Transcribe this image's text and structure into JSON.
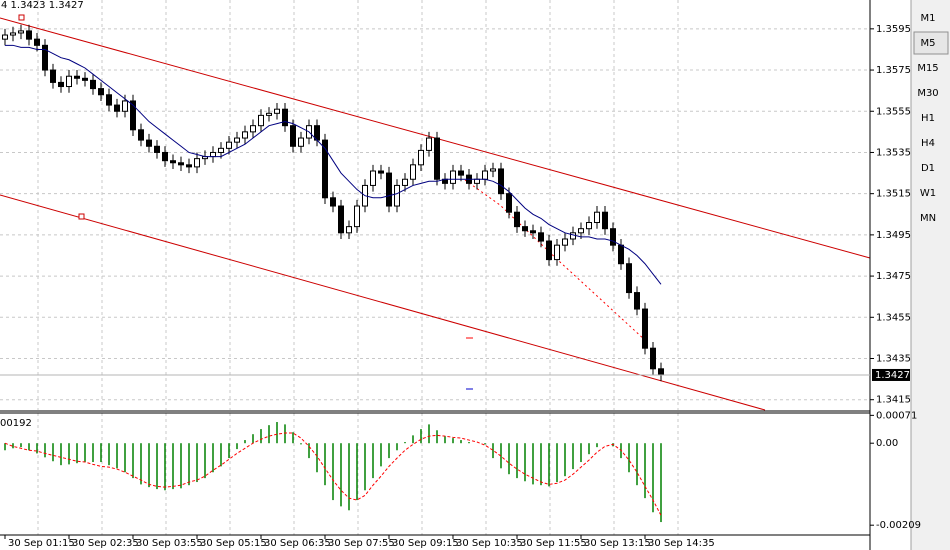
{
  "chart_data": {
    "type": "candlestick",
    "info_text": "4 1.3423 1.3427",
    "indicator_label": "00192",
    "categories": [
      "30 Sep 01:15",
      null,
      null,
      null,
      null,
      null,
      null,
      null,
      "30 Sep 02:35",
      null,
      null,
      null,
      null,
      null,
      null,
      null,
      "30 Sep 03:55",
      null,
      null,
      null,
      null,
      null,
      null,
      null,
      "30 Sep 05:15",
      null,
      null,
      null,
      null,
      null,
      null,
      null,
      "30 Sep 06:35",
      null,
      null,
      null,
      null,
      null,
      null,
      null,
      "30 Sep 07:55",
      null,
      null,
      null,
      null,
      null,
      null,
      null,
      "30 Sep 09:15",
      null,
      null,
      null,
      null,
      null,
      null,
      null,
      "30 Sep 10:35",
      null,
      null,
      null,
      null,
      null,
      null,
      null,
      "30 Sep 11:55",
      null,
      null,
      null,
      null,
      null,
      null,
      null,
      "30 Sep 13:15",
      null,
      null,
      null,
      null,
      null,
      null,
      null,
      "30 Sep 14:35",
      null,
      null
    ],
    "open": [
      1.359,
      1.3592,
      1.3593,
      1.3594,
      1.359,
      1.3587,
      1.3575,
      1.3569,
      1.3567,
      1.3572,
      1.3571,
      1.357,
      1.3566,
      1.3563,
      1.3558,
      1.3555,
      1.356,
      1.3546,
      1.3541,
      1.3538,
      1.3535,
      1.3531,
      1.353,
      1.3529,
      1.3528,
      1.3532,
      1.3533,
      1.3535,
      1.3537,
      1.354,
      1.3542,
      1.3545,
      1.3548,
      1.3553,
      1.3554,
      1.3556,
      1.3548,
      1.3538,
      1.3542,
      1.3548,
      1.3541,
      1.3513,
      1.3509,
      1.3496,
      1.3499,
      1.3509,
      1.3519,
      1.3526,
      1.3525,
      1.3509,
      1.3519,
      1.3522,
      1.3529,
      1.3536,
      1.3542,
      1.3522,
      1.352,
      1.3526,
      1.3524,
      1.352,
      1.3522,
      1.3526,
      1.3527,
      1.3515,
      1.3506,
      1.3499,
      1.3497,
      1.3496,
      1.3492,
      1.3483,
      1.349,
      1.3493,
      1.3496,
      1.3498,
      1.3501,
      1.3506,
      1.3498,
      1.349,
      1.3481,
      1.3467,
      1.3459,
      1.344,
      1.343
    ],
    "high": [
      1.3595,
      1.3596,
      1.3597,
      1.3597,
      1.3593,
      1.359,
      1.3578,
      1.3572,
      1.3575,
      1.3575,
      1.3574,
      1.3573,
      1.3569,
      1.3566,
      1.3561,
      1.3563,
      1.3563,
      1.3549,
      1.3544,
      1.3541,
      1.3538,
      1.3534,
      1.3533,
      1.3532,
      1.3535,
      1.3536,
      1.3538,
      1.354,
      1.3543,
      1.3545,
      1.3548,
      1.3551,
      1.3556,
      1.3557,
      1.3559,
      1.3559,
      1.3551,
      1.3545,
      1.3551,
      1.3551,
      1.3544,
      1.3516,
      1.3512,
      1.3502,
      1.3512,
      1.3522,
      1.3529,
      1.3529,
      1.3528,
      1.3522,
      1.3525,
      1.3532,
      1.3539,
      1.3545,
      1.3545,
      1.3525,
      1.3529,
      1.3529,
      1.3527,
      1.3525,
      1.3529,
      1.353,
      1.353,
      1.3518,
      1.3509,
      1.3502,
      1.35,
      1.3499,
      1.3495,
      1.3493,
      1.3496,
      1.3499,
      1.3501,
      1.3504,
      1.3509,
      1.3509,
      1.3501,
      1.3493,
      1.3484,
      1.347,
      1.3462,
      1.3443,
      1.3433
    ],
    "low": [
      1.3587,
      1.3589,
      1.359,
      1.3587,
      1.3584,
      1.3572,
      1.3566,
      1.3564,
      1.3564,
      1.3568,
      1.3567,
      1.3563,
      1.356,
      1.3555,
      1.3552,
      1.3552,
      1.3543,
      1.3538,
      1.3535,
      1.3532,
      1.3528,
      1.3527,
      1.3526,
      1.3525,
      1.3525,
      1.3529,
      1.353,
      1.3532,
      1.3534,
      1.3537,
      1.3539,
      1.3542,
      1.3545,
      1.355,
      1.3551,
      1.3545,
      1.3535,
      1.3535,
      1.3539,
      1.3538,
      1.351,
      1.3506,
      1.3493,
      1.3493,
      1.3496,
      1.3506,
      1.3516,
      1.3522,
      1.3506,
      1.3506,
      1.3516,
      1.3519,
      1.3526,
      1.3533,
      1.3519,
      1.3517,
      1.3517,
      1.3521,
      1.3517,
      1.3517,
      1.3519,
      1.3523,
      1.3512,
      1.3503,
      1.3496,
      1.3494,
      1.3493,
      1.3489,
      1.348,
      1.348,
      1.3487,
      1.349,
      1.3493,
      1.3495,
      1.3498,
      1.3495,
      1.3487,
      1.3478,
      1.3464,
      1.3456,
      1.3437,
      1.3427,
      1.3424
    ],
    "close": [
      1.3592,
      1.3593,
      1.3594,
      1.359,
      1.3587,
      1.3575,
      1.3569,
      1.3567,
      1.3572,
      1.3571,
      1.357,
      1.3566,
      1.3563,
      1.3558,
      1.3555,
      1.356,
      1.3546,
      1.3541,
      1.3538,
      1.3535,
      1.3531,
      1.353,
      1.3529,
      1.3528,
      1.3532,
      1.3533,
      1.3535,
      1.3537,
      1.354,
      1.3542,
      1.3545,
      1.3548,
      1.3553,
      1.3554,
      1.3556,
      1.3548,
      1.3538,
      1.3542,
      1.3548,
      1.3541,
      1.3513,
      1.3509,
      1.3496,
      1.3499,
      1.3509,
      1.3519,
      1.3526,
      1.3525,
      1.3509,
      1.3519,
      1.3522,
      1.3529,
      1.3536,
      1.3542,
      1.3522,
      1.352,
      1.3526,
      1.3524,
      1.352,
      1.3522,
      1.3526,
      1.3527,
      1.3515,
      1.3506,
      1.3499,
      1.3497,
      1.3496,
      1.3492,
      1.3483,
      1.349,
      1.3493,
      1.3496,
      1.3498,
      1.3501,
      1.3506,
      1.3498,
      1.349,
      1.3481,
      1.3467,
      1.3459,
      1.344,
      1.343,
      1.3427
    ],
    "up_color": "#ffffff",
    "down_color": "#000000",
    "series": [
      {
        "type": "line",
        "color": "#000080",
        "values": [
          1.3587,
          1.3587,
          1.3586,
          1.3586,
          1.3585,
          1.3585,
          1.3583,
          1.3581,
          1.358,
          1.3578,
          1.3576,
          1.3573,
          1.357,
          1.3567,
          1.3564,
          1.3561,
          1.3558,
          1.3554,
          1.355,
          1.3547,
          1.3544,
          1.3541,
          1.3538,
          1.3535,
          1.3534,
          1.3533,
          1.3533,
          1.3533,
          1.3535,
          1.3537,
          1.3539,
          1.3542,
          1.3545,
          1.3548,
          1.3549,
          1.355,
          1.3549,
          1.3547,
          1.3545,
          1.3541,
          1.3537,
          1.3531,
          1.3525,
          1.3521,
          1.3517,
          1.3514,
          1.3513,
          1.3513,
          1.3514,
          1.3515,
          1.3517,
          1.3519,
          1.352,
          1.3521,
          1.3521,
          1.3522,
          1.3522,
          1.3522,
          1.3522,
          1.3522,
          1.3522,
          1.3521,
          1.3519,
          1.3516,
          1.3512,
          1.3508,
          1.3505,
          1.3503,
          1.35,
          1.3498,
          1.3496,
          1.3495,
          1.3494,
          1.3494,
          1.3493,
          1.3493,
          1.3492,
          1.349,
          1.3488,
          1.3485,
          1.3481,
          1.3476,
          1.3471
        ]
      },
      {
        "type": "bar",
        "axis": "y2",
        "color": "#008000",
        "values": [
          -0.00018,
          -0.00013,
          -0.0001,
          -0.00018,
          -0.00026,
          -0.00036,
          -0.00046,
          -0.00056,
          -0.00054,
          -0.00051,
          -0.00048,
          -0.00048,
          -0.00048,
          -0.00056,
          -0.00064,
          -0.00074,
          -0.00089,
          -0.00105,
          -0.00112,
          -0.00117,
          -0.0012,
          -0.00117,
          -0.00115,
          -0.00107,
          -0.00099,
          -0.00089,
          -0.00074,
          -0.00059,
          -0.00038,
          -0.00015,
          8e-05,
          0.00023,
          0.00036,
          0.00046,
          0.00054,
          0.00048,
          0.00028,
          -3e-05,
          -0.00038,
          -0.00074,
          -0.00107,
          -0.00145,
          -0.00161,
          -0.00171,
          -0.00145,
          -0.0012,
          -0.00089,
          -0.00059,
          -0.00038,
          -0.00018,
          3e-05,
          0.0002,
          0.00036,
          0.00048,
          0.00033,
          0.00018,
          0.00013,
          8e-05,
          3e-05,
          0,
          -3e-05,
          -0.00038,
          -0.00064,
          -0.00079,
          -0.00089,
          -0.00097,
          -0.00105,
          -0.00107,
          -0.0011,
          -0.00099,
          -0.00084,
          -0.00066,
          -0.00048,
          -0.00028,
          -0.0001,
          0,
          -8e-05,
          -0.00038,
          -0.00074,
          -0.00107,
          -0.0014,
          -0.00176,
          -0.00201
        ]
      },
      {
        "type": "line",
        "axis": "y2",
        "dashed": true,
        "color": "#ff0000",
        "values": [
          0,
          -8e-05,
          -0.00013,
          -0.00018,
          -0.0002,
          -0.00026,
          -0.00031,
          -0.00036,
          -0.00041,
          -0.00046,
          -0.00048,
          -0.00054,
          -0.00059,
          -0.00061,
          -0.00066,
          -0.00074,
          -0.00084,
          -0.00094,
          -0.00105,
          -0.0011,
          -0.00112,
          -0.0011,
          -0.00107,
          -0.00099,
          -0.00094,
          -0.00084,
          -0.00069,
          -0.00056,
          -0.00041,
          -0.00026,
          -0.00013,
          0,
          0.0001,
          0.00018,
          0.00023,
          0.00026,
          0.00026,
          0.00013,
          -8e-05,
          -0.00033,
          -0.00064,
          -0.00094,
          -0.0012,
          -0.0014,
          -0.00145,
          -0.00133,
          -0.00107,
          -0.00084,
          -0.00059,
          -0.00038,
          -0.00018,
          -3e-05,
          0.0001,
          0.00018,
          0.0002,
          0.00018,
          0.00015,
          0.00013,
          8e-05,
          3e-05,
          -5e-05,
          -0.00018,
          -0.00033,
          -0.00051,
          -0.00066,
          -0.00079,
          -0.00089,
          -0.00099,
          -0.00105,
          -0.00102,
          -0.00094,
          -0.00079,
          -0.00061,
          -0.00043,
          -0.00023,
          -8e-05,
          -3e-05,
          -0.00018,
          -0.00043,
          -0.00074,
          -0.0011,
          -0.00145,
          -0.00184
        ]
      }
    ],
    "last_price": 1.3427,
    "ylim": [
      1.341,
      1.3609
    ],
    "yticks": [
      1.3415,
      1.3435,
      1.3455,
      1.3475,
      1.3495,
      1.3515,
      1.3535,
      1.3555,
      1.3575,
      1.3595
    ],
    "y2lim": [
      -0.00234,
      0.00077
    ],
    "y2ticks": [
      0.00071,
      {
        "value": 0,
        "label": "0.00"
      },
      -0.00209
    ],
    "grid": true,
    "timeframes": [
      "M1",
      "M5",
      "M15",
      "M30",
      "H1",
      "H4",
      "D1",
      "W1",
      "MN"
    ],
    "selected_timeframe": 1
  }
}
